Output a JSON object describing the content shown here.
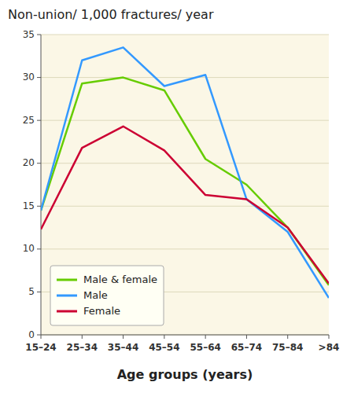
{
  "chart_data": {
    "type": "line",
    "title": "Non-union/ 1,000 fractures/ year",
    "xlabel": "Age groups (years)",
    "categories": [
      "15–24",
      "25–34",
      "35–44",
      "45–54",
      "55–64",
      "65–74",
      "75–84",
      ">84"
    ],
    "series": [
      {
        "name": "Male & female",
        "color": "#66cc00",
        "values": [
          14.5,
          29.3,
          30.0,
          28.5,
          20.5,
          17.5,
          12.5,
          5.8
        ]
      },
      {
        "name": "Male",
        "color": "#3399ff",
        "values": [
          14.5,
          32.0,
          33.5,
          29.0,
          30.3,
          15.8,
          12.0,
          4.3
        ]
      },
      {
        "name": "Female",
        "color": "#cc0033",
        "values": [
          12.3,
          21.8,
          24.3,
          21.5,
          16.3,
          15.8,
          12.5,
          6.0
        ]
      }
    ],
    "ylim": [
      0,
      35
    ],
    "yticks": [
      0,
      5,
      10,
      15,
      20,
      25,
      30,
      35
    ],
    "grid": true,
    "legend": "lower left"
  }
}
